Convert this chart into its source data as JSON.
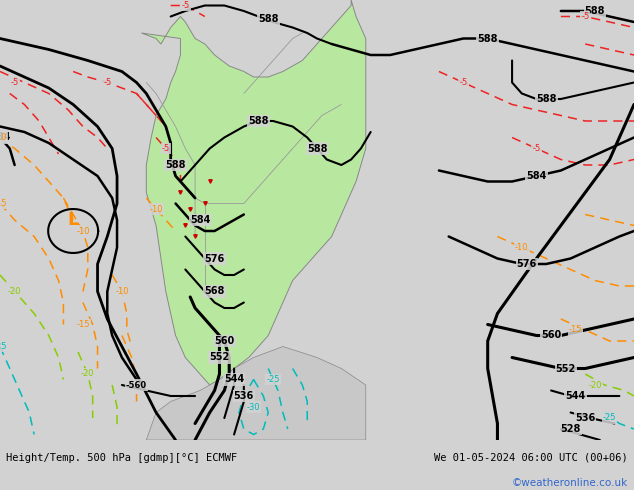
{
  "title_bottom_left": "Height/Temp. 500 hPa [gdmp][°C] ECMWF",
  "title_bottom_right": "We 01-05-2024 06:00 UTC (00+06)",
  "credit": "©weatheronline.co.uk",
  "fig_bg": "#d2d2d2",
  "map_bg": "#d2d2d2",
  "land_green": "#b8e8a0",
  "land_gray": "#c8c8c8",
  "z500_color": "#000000",
  "temp_red": "#ee2222",
  "temp_orange": "#ff8c00",
  "temp_green": "#88cc00",
  "temp_cyan": "#00bbbb"
}
